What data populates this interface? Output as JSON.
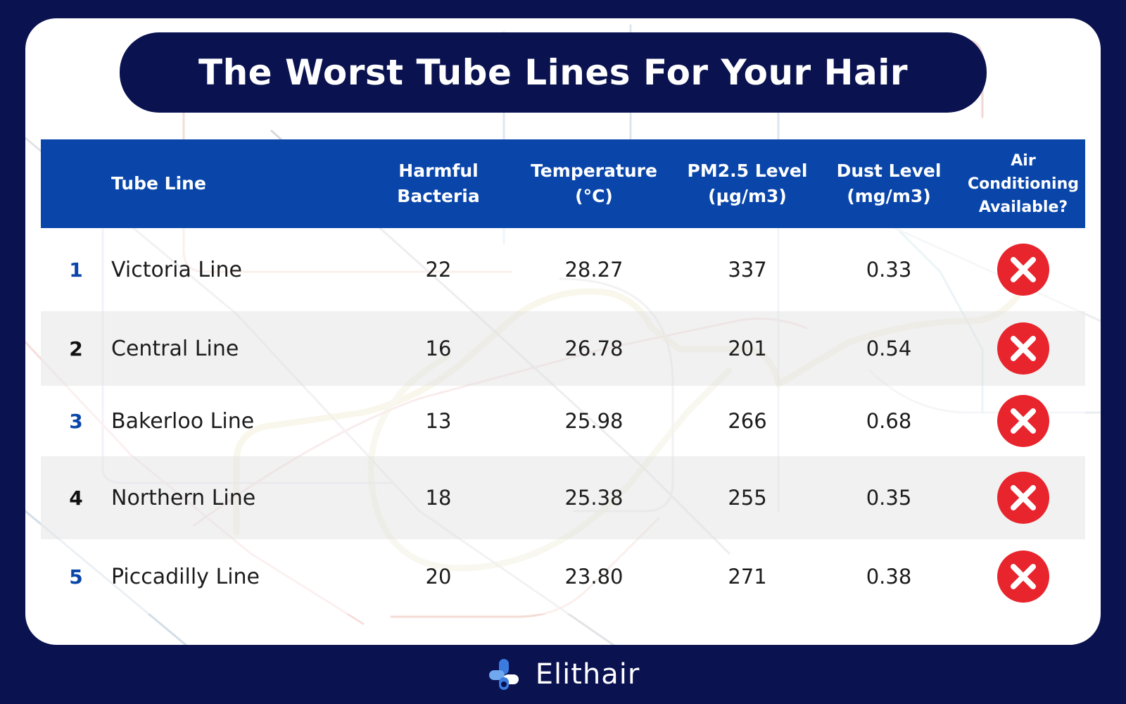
{
  "title": "The Worst Tube Lines For Your Hair",
  "colors": {
    "navy": "#0a1250",
    "header_blue": "#0a46aa",
    "rank_blue": "#0a46aa",
    "rank_dark": "#111111",
    "no_icon_red": "#e8242d"
  },
  "headers": {
    "tube_line": "Tube Line",
    "bacteria": [
      "Harmful",
      "Bacteria"
    ],
    "temperature": [
      "Temperature",
      "(°C)"
    ],
    "pm25": [
      "PM2.5 Level",
      "(µg/m3)"
    ],
    "dust": [
      "Dust Level",
      "(mg/m3)"
    ],
    "ac": [
      "Air",
      "Conditioning",
      "Available?"
    ]
  },
  "rows": [
    {
      "rank": "1",
      "line": "Victoria Line",
      "bacteria": "22",
      "temperature": "28.27",
      "pm25": "337",
      "dust": "0.33",
      "ac": "no",
      "ac_icon": "red-cross-icon"
    },
    {
      "rank": "2",
      "line": "Central Line",
      "bacteria": "16",
      "temperature": "26.78",
      "pm25": "201",
      "dust": "0.54",
      "ac": "no",
      "ac_icon": "red-cross-icon"
    },
    {
      "rank": "3",
      "line": "Bakerloo Line",
      "bacteria": "13",
      "temperature": "25.98",
      "pm25": "266",
      "dust": "0.68",
      "ac": "no",
      "ac_icon": "red-cross-icon"
    },
    {
      "rank": "4",
      "line": "Northern Line",
      "bacteria": "18",
      "temperature": "25.38",
      "pm25": "255",
      "dust": "0.35",
      "ac": "no",
      "ac_icon": "red-cross-icon"
    },
    {
      "rank": "5",
      "line": "Piccadilly Line",
      "bacteria": "20",
      "temperature": "23.80",
      "pm25": "271",
      "dust": "0.38",
      "ac": "no",
      "ac_icon": "red-cross-icon"
    }
  ],
  "chart_data": {
    "type": "table",
    "title": "The Worst Tube Lines For Your Hair",
    "columns": [
      "",
      "Tube Line",
      "Harmful Bacteria",
      "Temperature (°C)",
      "PM2.5 Level (µg/m3)",
      "Dust Level (mg/m3)",
      "Air Conditioning Available?"
    ],
    "rows": [
      [
        "1",
        "Victoria Line",
        22,
        28.27,
        337,
        0.33,
        "no"
      ],
      [
        "2",
        "Central Line",
        16,
        26.78,
        201,
        0.54,
        "no"
      ],
      [
        "3",
        "Bakerloo Line",
        13,
        25.98,
        266,
        0.68,
        "no"
      ],
      [
        "4",
        "Northern Line",
        18,
        25.38,
        255,
        0.35,
        "no"
      ],
      [
        "5",
        "Piccadilly Line",
        20,
        23.8,
        271,
        0.38,
        "no"
      ]
    ]
  },
  "footer": {
    "brand": "Elithair",
    "logo_icon": "elithair-logo-icon"
  }
}
